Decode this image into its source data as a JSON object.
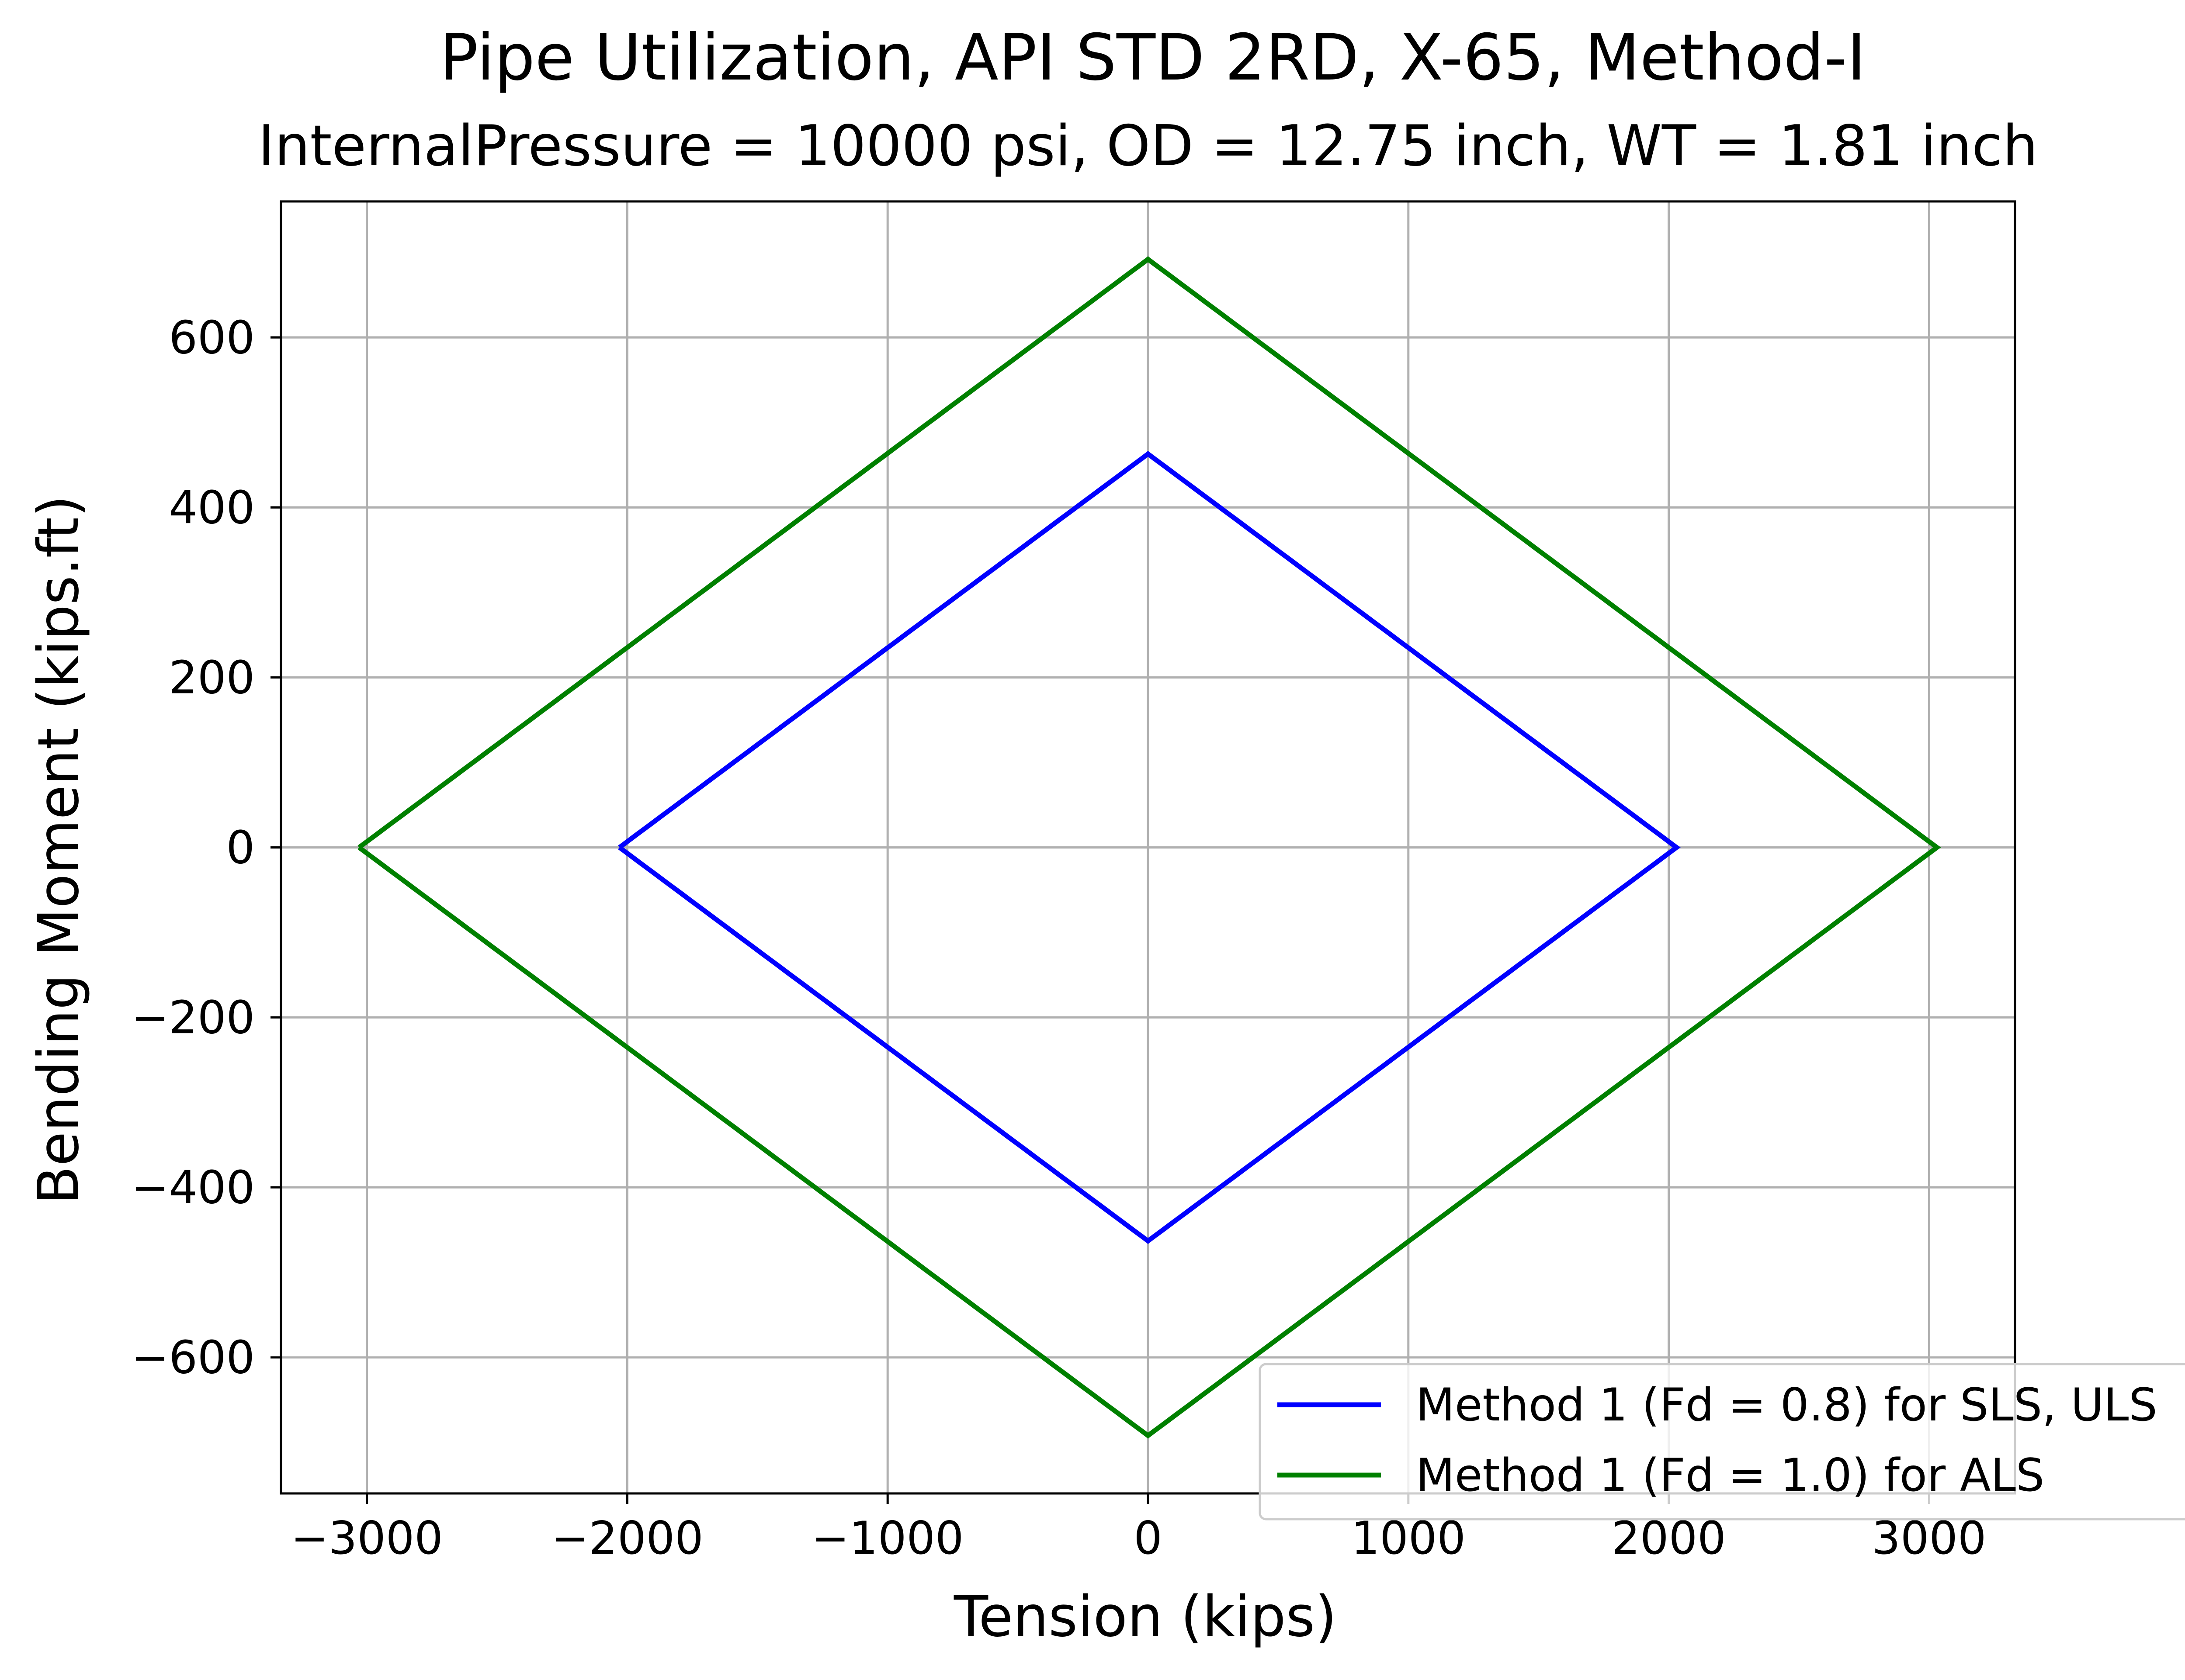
{
  "chart_data": {
    "type": "line",
    "title": "Pipe Utilization, API STD 2RD, X-65, Method-I",
    "subtitle": "InternalPressure = 10000 psi, OD = 12.75 inch, WT = 1.81 inch",
    "xlabel": "Tension (kips)",
    "ylabel": "Bending Moment (kips.ft)",
    "xlim": [
      -3330,
      3330
    ],
    "ylim": [
      -760,
      760
    ],
    "xticks": [
      -3000,
      -2000,
      -1000,
      0,
      1000,
      2000,
      3000
    ],
    "yticks": [
      -600,
      -400,
      -200,
      0,
      200,
      400,
      600
    ],
    "xtick_labels": [
      "−3000",
      "−2000",
      "−1000",
      "0",
      "1000",
      "2000",
      "3000"
    ],
    "ytick_labels": [
      "−600",
      "−400",
      "−200",
      "0",
      "200",
      "400",
      "600"
    ],
    "grid": true,
    "legend_position": "lower-right",
    "series": [
      {
        "name": "Method 1 (Fd = 0.8) for SLS, ULS",
        "color": "#0000ff",
        "x": [
          -2030,
          0,
          2030,
          0,
          -2030
        ],
        "y": [
          0,
          463,
          0,
          -463,
          0
        ]
      },
      {
        "name": "Method 1 (Fd = 1.0) for ALS",
        "color": "#008000",
        "x": [
          -3030,
          0,
          3030,
          0,
          -3030
        ],
        "y": [
          0,
          692,
          0,
          -692,
          0
        ]
      }
    ]
  }
}
